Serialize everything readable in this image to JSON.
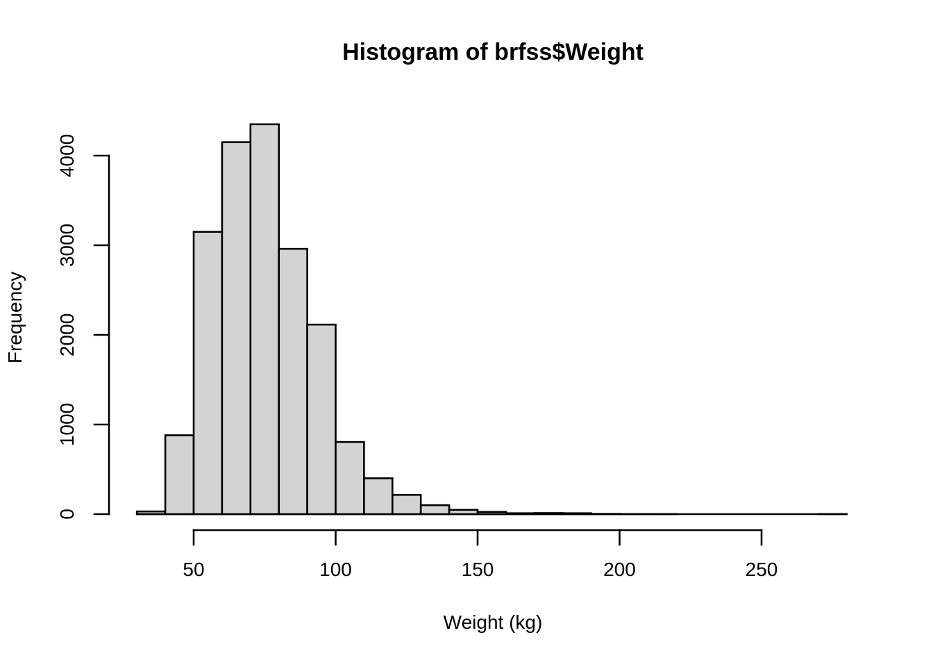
{
  "title": "Histogram of brfss$Weight",
  "chart_data": {
    "type": "bar",
    "subtype": "histogram",
    "title": "Histogram of brfss$Weight",
    "xlabel": "Weight (kg)",
    "ylabel": "Frequency",
    "bin_start": 30,
    "bin_width": 10,
    "bin_edges": [
      30,
      40,
      50,
      60,
      70,
      80,
      90,
      100,
      110,
      120,
      130,
      140,
      150,
      160,
      170,
      180,
      190,
      200,
      210,
      220,
      230,
      240,
      250,
      260,
      270,
      280
    ],
    "counts": [
      30,
      880,
      3150,
      4150,
      4350,
      2960,
      2115,
      805,
      400,
      215,
      100,
      48,
      25,
      10,
      12,
      10,
      3,
      1,
      1,
      0,
      0,
      0,
      0,
      0,
      1
    ],
    "x_ticks": [
      50,
      100,
      150,
      200,
      250
    ],
    "y_ticks": [
      0,
      1000,
      2000,
      3000,
      4000
    ],
    "xlim": [
      30,
      280
    ],
    "ylim": [
      0,
      4350
    ],
    "grid": false,
    "legend": null,
    "bar_fill": "#d3d3d3",
    "bar_border": "#000000",
    "background": "#ffffff",
    "text_color": "#000000"
  }
}
